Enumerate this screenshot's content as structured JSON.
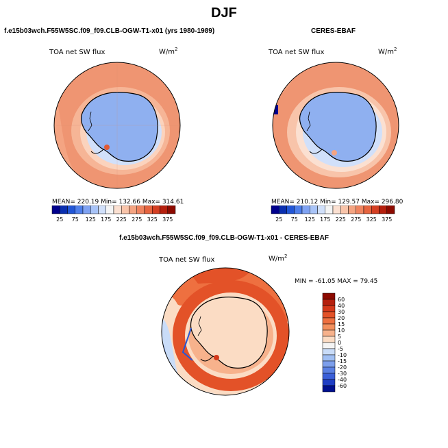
{
  "main_title": "DJF",
  "panels": {
    "model": {
      "subtitle": "f.e15b03wch.F55W5SC.f09_f09.CLB-OGW-T1-x01 (yrs 1980-1989)",
      "variable": "TOA net SW flux",
      "units": "W/m",
      "units_exp": "2",
      "stats": "MEAN= 220.19   Min= 132.66   Max= 314.61"
    },
    "obs": {
      "subtitle": "CERES-EBAF",
      "variable": "TOA net SW flux",
      "units": "W/m",
      "units_exp": "2",
      "stats": "MEAN= 210.12   Min= 129.57   Max= 296.80"
    },
    "diff": {
      "subtitle": "f.e15b03wch.F55W5SC.f09_f09.CLB-OGW-T1-x01 - CERES-EBAF",
      "variable": "TOA net SW flux",
      "units": "W/m",
      "units_exp": "2",
      "stats": "MIN = -61.05  MAX =  79.45"
    }
  },
  "abs_colorbar": {
    "labels": [
      "25",
      "75",
      "125",
      "175",
      "225",
      "275",
      "325",
      "375"
    ],
    "colors": [
      "#00008c",
      "#0a2fb0",
      "#2256d6",
      "#4f7fea",
      "#7fa2f2",
      "#a8c3f7",
      "#d1e0fa",
      "#f4f4f4",
      "#fbe0d1",
      "#f8c4aa",
      "#f4a482",
      "#ef8460",
      "#e6643f",
      "#d43f22",
      "#b5200e",
      "#8c0a00"
    ]
  },
  "diff_colorbar": {
    "labels": [
      "60",
      "40",
      "30",
      "20",
      "15",
      "10",
      "5",
      "0",
      "-5",
      "-10",
      "-15",
      "-20",
      "-30",
      "-40",
      "-60"
    ],
    "colors": [
      "#8c0a00",
      "#b5200e",
      "#d4381a",
      "#e35228",
      "#ee7040",
      "#f3905e",
      "#f7b28c",
      "#fbdcc4",
      "#f4f4f4",
      "#c9dcf8",
      "#a0bff3",
      "#7d9fec",
      "#5a80e3",
      "#3a5fd8",
      "#1f3ec4",
      "#00108f"
    ]
  }
}
